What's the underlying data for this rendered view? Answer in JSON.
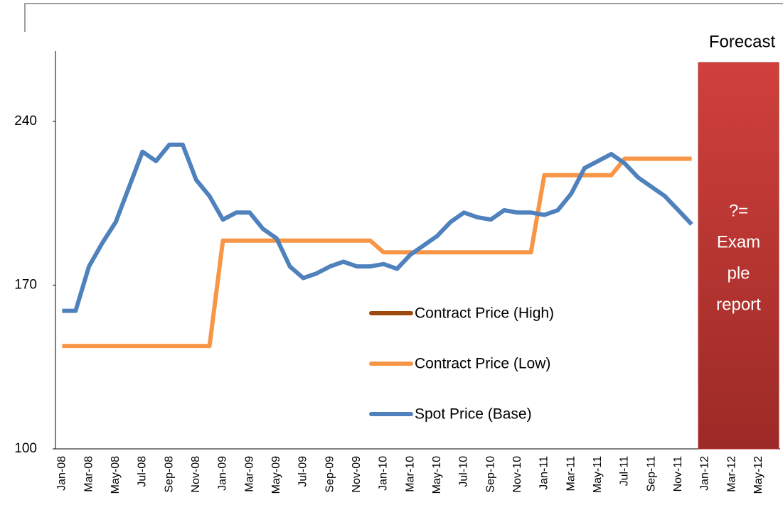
{
  "chart_data": {
    "type": "line",
    "categories": [
      "Jan-08",
      null,
      "Mar-08",
      null,
      "May-08",
      null,
      "Jul-08",
      null,
      "Sep-08",
      null,
      "Nov-08",
      null,
      "Jan-09",
      null,
      "Mar-09",
      null,
      "May-09",
      null,
      "Jul-09",
      null,
      "Sep-09",
      null,
      "Nov-09",
      null,
      "Jan-10",
      null,
      "Mar-10",
      null,
      "May-10",
      null,
      "Jul-10",
      null,
      "Sep-10",
      null,
      "Nov-10",
      null,
      "Jan-11",
      null,
      "Mar-11",
      null,
      "May-11",
      null,
      "Jul-11",
      null,
      "Sep-11",
      null,
      "Nov-11",
      null,
      "Jan-12",
      null,
      "Mar-12",
      null,
      "May-12",
      null
    ],
    "series": [
      {
        "name": "Contract Price (High)",
        "color": "#9c4a0e",
        "values": [
          null,
          null,
          null,
          null,
          null,
          null,
          null,
          null,
          null,
          null,
          null,
          null,
          null,
          null,
          null,
          null,
          null,
          null,
          null,
          null,
          null,
          null,
          null,
          null,
          null,
          null,
          null,
          null,
          null,
          null,
          null,
          null,
          null,
          null,
          null,
          null,
          null,
          null,
          null,
          null,
          null,
          null,
          null,
          null,
          null,
          null,
          null,
          null,
          null,
          null,
          null,
          null,
          null,
          null
        ]
      },
      {
        "name": "Contract Price (Low)",
        "color": "#f79646",
        "values": [
          144,
          144,
          144,
          144,
          144,
          144,
          144,
          144,
          144,
          144,
          144,
          144,
          189,
          189,
          189,
          189,
          189,
          189,
          189,
          189,
          189,
          189,
          189,
          189,
          184,
          184,
          184,
          184,
          184,
          184,
          184,
          184,
          184,
          184,
          184,
          184,
          217,
          217,
          217,
          217,
          217,
          217,
          224,
          224,
          224,
          224,
          224,
          224,
          null,
          null,
          null,
          null,
          null,
          null
        ]
      },
      {
        "name": "Spot Price (Base)",
        "color": "#4f81bd",
        "values": [
          159,
          159,
          178,
          188,
          197,
          212,
          227,
          223,
          230,
          230,
          215,
          208,
          198,
          201,
          201,
          194,
          190,
          178,
          173,
          175,
          178,
          180,
          178,
          178,
          179,
          177,
          183,
          187,
          191,
          197,
          201,
          199,
          198,
          202,
          201,
          201,
          200,
          202,
          209,
          220,
          223,
          226,
          222,
          216,
          212,
          208,
          202,
          196,
          null,
          null,
          null,
          null,
          null,
          null
        ]
      }
    ],
    "ylim": [
      100,
      270
    ],
    "yticks": [
      100,
      170,
      240
    ],
    "forecast": {
      "label": "Forecast",
      "text": [
        "?=",
        "Exam",
        "ple",
        "report"
      ]
    }
  }
}
